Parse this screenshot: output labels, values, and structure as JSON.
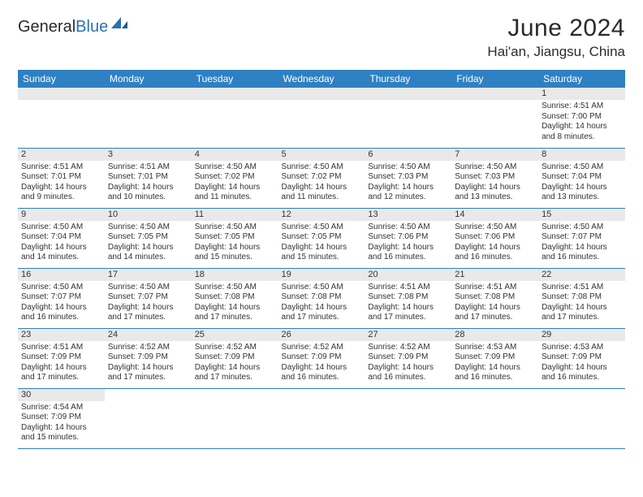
{
  "brand": {
    "part1": "General",
    "part2": "Blue"
  },
  "title": "June 2024",
  "location": "Hai'an, Jiangsu, China",
  "dayHeaders": [
    "Sunday",
    "Monday",
    "Tuesday",
    "Wednesday",
    "Thursday",
    "Friday",
    "Saturday"
  ],
  "colors": {
    "header_bg": "#2f80c3",
    "header_text": "#ffffff",
    "daynum_bg": "#e9e9e9",
    "border": "#2f80c3",
    "logo_blue": "#2772bb",
    "text": "#2a2a2a"
  },
  "fonts": {
    "title_pt": 30,
    "location_pt": 17,
    "header_pt": 12,
    "daynum_pt": 11,
    "body_pt": 10
  },
  "layout": {
    "cols": 7,
    "rows": 6,
    "leading_blanks": 6
  },
  "days": [
    {
      "n": 1,
      "sr": "4:51 AM",
      "ss": "7:00 PM",
      "dl": "14 hours and 8 minutes."
    },
    {
      "n": 2,
      "sr": "4:51 AM",
      "ss": "7:01 PM",
      "dl": "14 hours and 9 minutes."
    },
    {
      "n": 3,
      "sr": "4:51 AM",
      "ss": "7:01 PM",
      "dl": "14 hours and 10 minutes."
    },
    {
      "n": 4,
      "sr": "4:50 AM",
      "ss": "7:02 PM",
      "dl": "14 hours and 11 minutes."
    },
    {
      "n": 5,
      "sr": "4:50 AM",
      "ss": "7:02 PM",
      "dl": "14 hours and 11 minutes."
    },
    {
      "n": 6,
      "sr": "4:50 AM",
      "ss": "7:03 PM",
      "dl": "14 hours and 12 minutes."
    },
    {
      "n": 7,
      "sr": "4:50 AM",
      "ss": "7:03 PM",
      "dl": "14 hours and 13 minutes."
    },
    {
      "n": 8,
      "sr": "4:50 AM",
      "ss": "7:04 PM",
      "dl": "14 hours and 13 minutes."
    },
    {
      "n": 9,
      "sr": "4:50 AM",
      "ss": "7:04 PM",
      "dl": "14 hours and 14 minutes."
    },
    {
      "n": 10,
      "sr": "4:50 AM",
      "ss": "7:05 PM",
      "dl": "14 hours and 14 minutes."
    },
    {
      "n": 11,
      "sr": "4:50 AM",
      "ss": "7:05 PM",
      "dl": "14 hours and 15 minutes."
    },
    {
      "n": 12,
      "sr": "4:50 AM",
      "ss": "7:05 PM",
      "dl": "14 hours and 15 minutes."
    },
    {
      "n": 13,
      "sr": "4:50 AM",
      "ss": "7:06 PM",
      "dl": "14 hours and 16 minutes."
    },
    {
      "n": 14,
      "sr": "4:50 AM",
      "ss": "7:06 PM",
      "dl": "14 hours and 16 minutes."
    },
    {
      "n": 15,
      "sr": "4:50 AM",
      "ss": "7:07 PM",
      "dl": "14 hours and 16 minutes."
    },
    {
      "n": 16,
      "sr": "4:50 AM",
      "ss": "7:07 PM",
      "dl": "14 hours and 16 minutes."
    },
    {
      "n": 17,
      "sr": "4:50 AM",
      "ss": "7:07 PM",
      "dl": "14 hours and 17 minutes."
    },
    {
      "n": 18,
      "sr": "4:50 AM",
      "ss": "7:08 PM",
      "dl": "14 hours and 17 minutes."
    },
    {
      "n": 19,
      "sr": "4:50 AM",
      "ss": "7:08 PM",
      "dl": "14 hours and 17 minutes."
    },
    {
      "n": 20,
      "sr": "4:51 AM",
      "ss": "7:08 PM",
      "dl": "14 hours and 17 minutes."
    },
    {
      "n": 21,
      "sr": "4:51 AM",
      "ss": "7:08 PM",
      "dl": "14 hours and 17 minutes."
    },
    {
      "n": 22,
      "sr": "4:51 AM",
      "ss": "7:08 PM",
      "dl": "14 hours and 17 minutes."
    },
    {
      "n": 23,
      "sr": "4:51 AM",
      "ss": "7:09 PM",
      "dl": "14 hours and 17 minutes."
    },
    {
      "n": 24,
      "sr": "4:52 AM",
      "ss": "7:09 PM",
      "dl": "14 hours and 17 minutes."
    },
    {
      "n": 25,
      "sr": "4:52 AM",
      "ss": "7:09 PM",
      "dl": "14 hours and 17 minutes."
    },
    {
      "n": 26,
      "sr": "4:52 AM",
      "ss": "7:09 PM",
      "dl": "14 hours and 16 minutes."
    },
    {
      "n": 27,
      "sr": "4:52 AM",
      "ss": "7:09 PM",
      "dl": "14 hours and 16 minutes."
    },
    {
      "n": 28,
      "sr": "4:53 AM",
      "ss": "7:09 PM",
      "dl": "14 hours and 16 minutes."
    },
    {
      "n": 29,
      "sr": "4:53 AM",
      "ss": "7:09 PM",
      "dl": "14 hours and 16 minutes."
    },
    {
      "n": 30,
      "sr": "4:54 AM",
      "ss": "7:09 PM",
      "dl": "14 hours and 15 minutes."
    }
  ],
  "labels": {
    "sunrise": "Sunrise: ",
    "sunset": "Sunset: ",
    "daylight": "Daylight: "
  }
}
